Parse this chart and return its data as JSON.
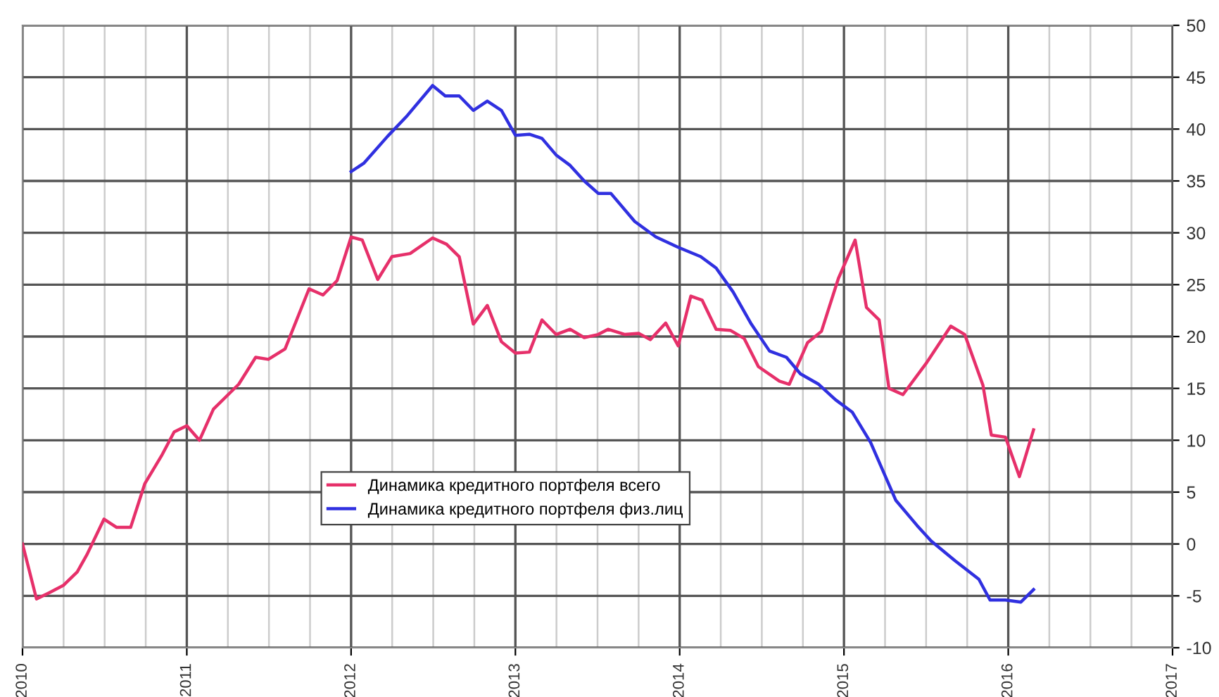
{
  "chart_data": {
    "type": "line",
    "xlim": [
      2010,
      2017
    ],
    "ylim": [
      -10,
      50
    ],
    "xticks": [
      2010,
      {
        "value": 2010.25,
        "label": null
      },
      {
        "value": 2010.5,
        "label": null
      },
      {
        "value": 2010.75,
        "label": null
      },
      2011,
      {
        "value": 2011.25,
        "label": null
      },
      {
        "value": 2011.5,
        "label": null
      },
      {
        "value": 2011.75,
        "label": null
      },
      2012,
      {
        "value": 2012.25,
        "label": null
      },
      {
        "value": 2012.5,
        "label": null
      },
      {
        "value": 2012.75,
        "label": null
      },
      2013,
      {
        "value": 2013.25,
        "label": null
      },
      {
        "value": 2013.5,
        "label": null
      },
      {
        "value": 2013.75,
        "label": null
      },
      2014,
      {
        "value": 2014.25,
        "label": null
      },
      {
        "value": 2014.5,
        "label": null
      },
      {
        "value": 2014.75,
        "label": null
      },
      2015,
      {
        "value": 2015.25,
        "label": null
      },
      {
        "value": 2015.5,
        "label": null
      },
      {
        "value": 2015.75,
        "label": null
      },
      2016,
      {
        "value": 2016.25,
        "label": null
      },
      {
        "value": 2016.5,
        "label": null
      },
      {
        "value": 2016.75,
        "label": null
      },
      2017
    ],
    "yticks": [
      -10,
      -5,
      0,
      5,
      10,
      15,
      20,
      25,
      30,
      35,
      40,
      45,
      50
    ],
    "grid": true,
    "legend": "bottom",
    "line_style": "solid",
    "marker": "none",
    "series": [
      {
        "name": "Динамика кредитного портфеля всего",
        "color": "#e6306a",
        "x": [
          2010.0,
          2010.085,
          2010.162,
          2010.248,
          2010.333,
          2010.393,
          2010.496,
          2010.573,
          2010.658,
          2010.744,
          2010.846,
          2010.923,
          2011.0,
          2011.077,
          2011.162,
          2011.316,
          2011.419,
          2011.496,
          2011.598,
          2011.744,
          2011.829,
          2011.915,
          2012.0,
          2012.068,
          2012.162,
          2012.248,
          2012.359,
          2012.496,
          2012.581,
          2012.658,
          2012.744,
          2012.829,
          2012.915,
          2013.0,
          2013.085,
          2013.162,
          2013.248,
          2013.333,
          2013.419,
          2013.504,
          2013.564,
          2013.667,
          2013.752,
          2013.821,
          2013.915,
          2013.991,
          2014.068,
          2014.137,
          2014.222,
          2014.308,
          2014.393,
          2014.479,
          2014.607,
          2014.667,
          2014.778,
          2014.863,
          2014.966,
          2015.068,
          2015.137,
          2015.214,
          2015.274,
          2015.359,
          2015.504,
          2015.65,
          2015.735,
          2015.846,
          2015.897,
          2015.983,
          2016.068,
          2016.154
        ],
        "values": [
          0,
          -5.3,
          -4.7,
          -4,
          -2.7,
          -1,
          2.4,
          1.6,
          1.6,
          5.8,
          8.5,
          10.8,
          11.4,
          10,
          13,
          15.4,
          18,
          17.8,
          18.8,
          24.6,
          24,
          25.4,
          29.6,
          29.3,
          25.5,
          27.7,
          28,
          29.5,
          28.9,
          27.7,
          21.2,
          23,
          19.5,
          18.4,
          18.5,
          21.6,
          20.2,
          20.7,
          19.9,
          20.2,
          20.7,
          20.2,
          20.3,
          19.7,
          21.3,
          19.1,
          23.9,
          23.5,
          20.7,
          20.6,
          19.8,
          17.1,
          15.7,
          15.4,
          19.4,
          20.5,
          25.6,
          29.3,
          22.8,
          21.6,
          15,
          14.4,
          17.5,
          21,
          20.2,
          15.3,
          10.5,
          10.3,
          6.5,
          11
        ]
      },
      {
        "name": "Динамика кредитного портфеля физ.лиц",
        "color": "#3030e0",
        "x": [
          2012.0,
          2012.077,
          2012.222,
          2012.342,
          2012.496,
          2012.573,
          2012.658,
          2012.744,
          2012.829,
          2012.915,
          2013.0,
          2013.085,
          2013.162,
          2013.248,
          2013.333,
          2013.419,
          2013.504,
          2013.581,
          2013.726,
          2013.855,
          2013.991,
          2014.128,
          2014.222,
          2014.325,
          2014.436,
          2014.547,
          2014.65,
          2014.735,
          2014.846,
          2014.949,
          2015.051,
          2015.162,
          2015.316,
          2015.444,
          2015.53,
          2015.675,
          2015.821,
          2015.889,
          2015.983,
          2016.077,
          2016.154
        ],
        "values": [
          35.9,
          36.7,
          39.3,
          41.3,
          44.2,
          43.2,
          43.2,
          41.8,
          42.7,
          41.8,
          39.4,
          39.5,
          39.1,
          37.5,
          36.5,
          35,
          33.8,
          33.8,
          31.1,
          29.6,
          28.6,
          27.7,
          26.6,
          24.3,
          21.2,
          18.6,
          18,
          16.4,
          15.4,
          13.9,
          12.7,
          9.8,
          4.2,
          1.8,
          0.3,
          -1.6,
          -3.4,
          -5.4,
          -5.4,
          -5.6,
          -4.4
        ]
      }
    ]
  }
}
